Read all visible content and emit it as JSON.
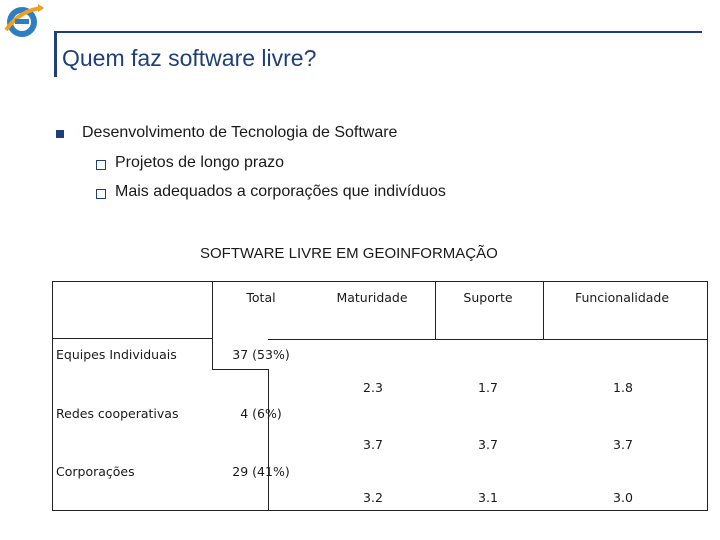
{
  "slide": {
    "title": "Quem faz software livre?",
    "bullet": "Desenvolvimento de Tecnologia de Software",
    "sub_bullets": [
      "Projetos de longo prazo",
      "Mais adequados a corporações que indivíduos"
    ],
    "table_caption": "SOFTWARE LIVRE EM GEOINFORMAÇÃO"
  },
  "table": {
    "headers": [
      "",
      "Total",
      "Maturidade",
      "Suporte",
      "Funcionalidade"
    ],
    "rows": [
      {
        "label": "Equipes Individuais",
        "total": "37 (53%)",
        "maturidade": "2.3",
        "suporte": "1.7",
        "funcionalidade": "1.8"
      },
      {
        "label": "Redes cooperativas",
        "total": "4 (6%)",
        "maturidade": "3.7",
        "suporte": "3.7",
        "funcionalidade": "3.7"
      },
      {
        "label": "Corporações",
        "total": "29 (41%)",
        "maturidade": "3.2",
        "suporte": "3.1",
        "funcionalidade": "3.0"
      }
    ]
  },
  "colors": {
    "accent": "#1f3f78",
    "logo_blue": "#2d7fc1",
    "logo_orange": "#f0a020"
  },
  "icons": {
    "logo": "inpe-logo-icon",
    "bullet": "square-bullet-icon",
    "sub_bullet": "hollow-square-bullet-icon"
  }
}
